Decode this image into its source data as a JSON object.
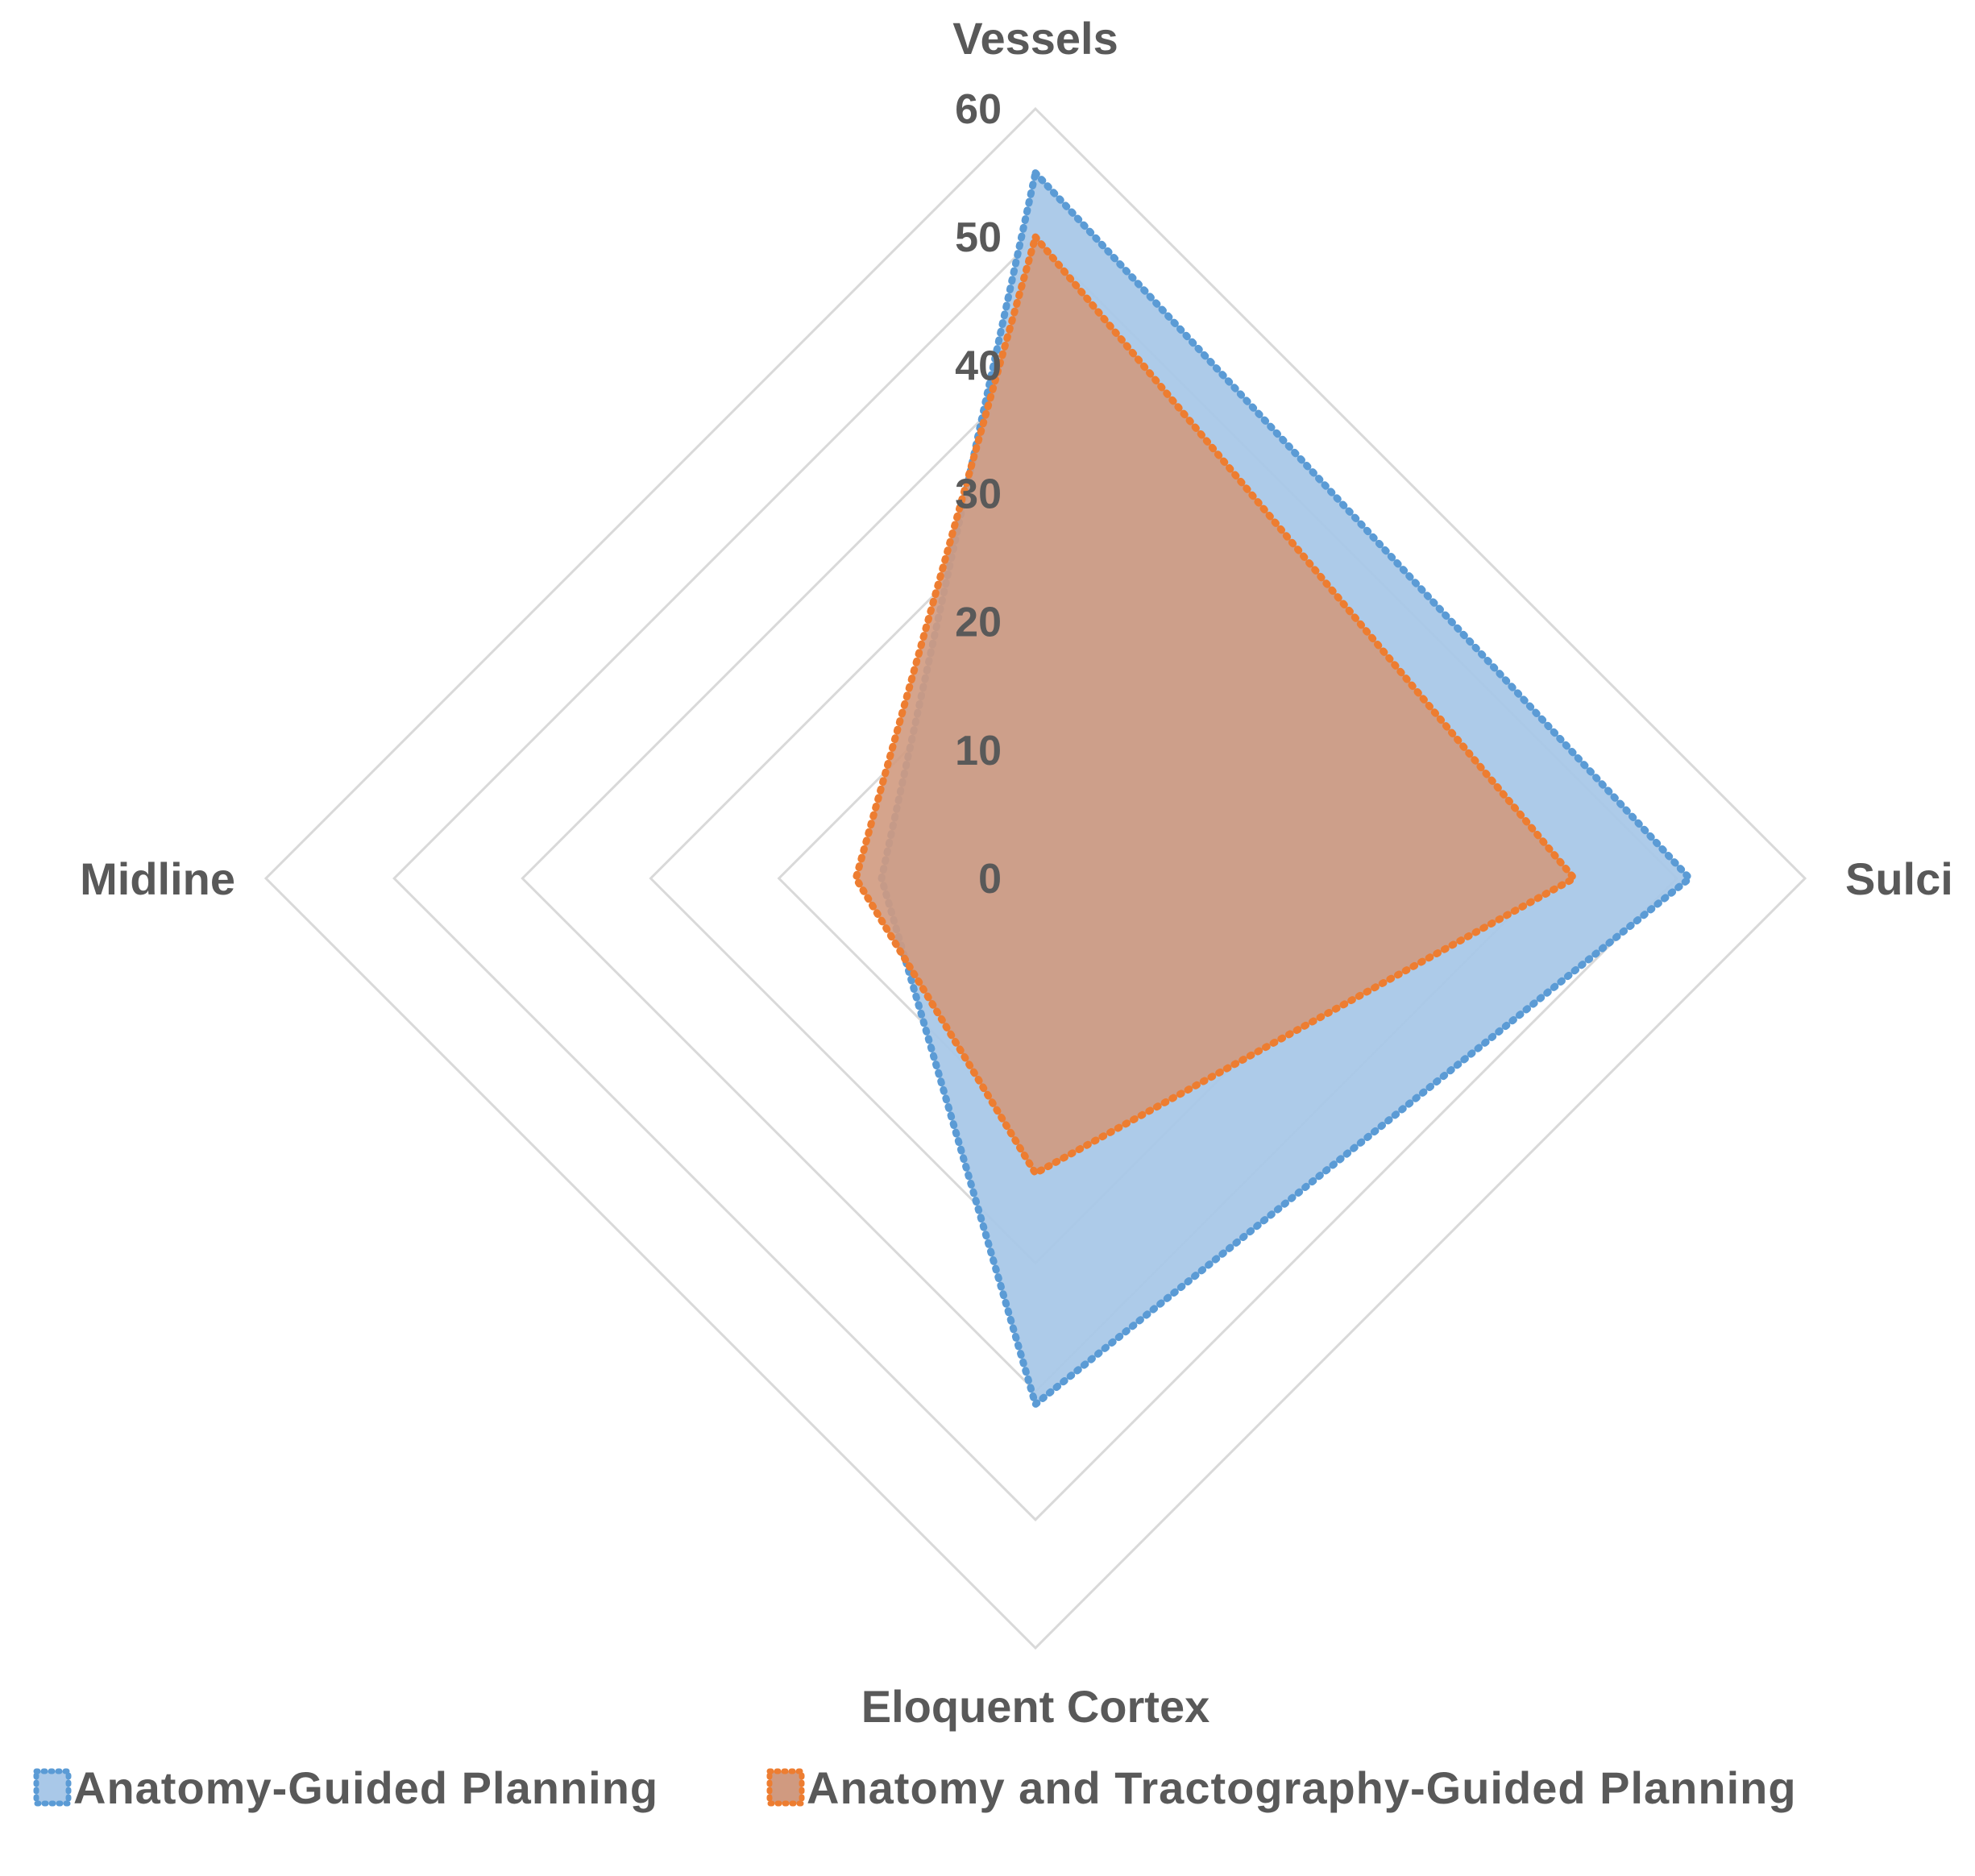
{
  "chart_data": {
    "type": "radar",
    "title": "",
    "categories": [
      "Vessels",
      "Sulci",
      "Eloquent Cortex",
      "Midline"
    ],
    "rlim": [
      0,
      60
    ],
    "ticks": [
      0,
      10,
      20,
      30,
      40,
      50,
      60
    ],
    "tick_labels": [
      "0",
      "10",
      "20",
      "30",
      "40",
      "50",
      "60"
    ],
    "series": [
      {
        "name": "Anatomy-Guided Planning",
        "color": "#5b9bd5",
        "fill": "#a9c8e8",
        "values": [
          55,
          51,
          41,
          12
        ]
      },
      {
        "name": "Anatomy and Tractography-Guided Planning",
        "color": "#ed7d31",
        "fill": "#d09a80",
        "values": [
          50,
          42,
          23,
          14
        ]
      }
    ],
    "legend": {
      "position": "bottom",
      "items": [
        "Anatomy-Guided Planning",
        "Anatomy and Tractography-Guided Planning"
      ]
    },
    "grid": true
  }
}
